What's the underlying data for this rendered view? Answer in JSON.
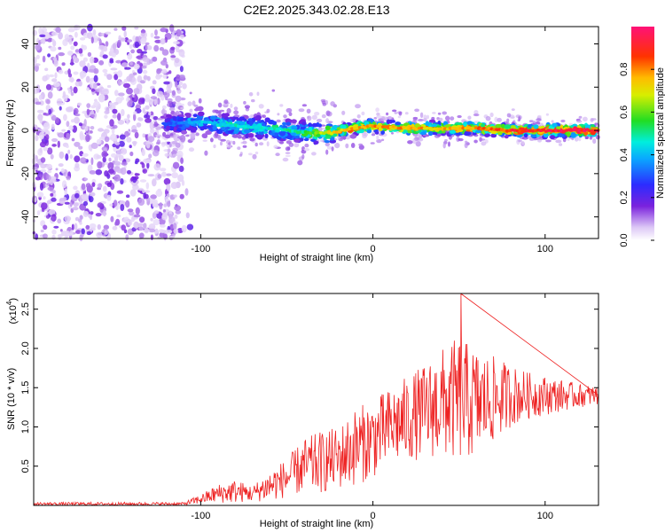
{
  "title": "C2E2.2025.343.02.28.E13",
  "chart_data": [
    {
      "type": "heatmap",
      "title": "C2E2.2025.343.02.28.E13",
      "xlabel": "Height of straight line (km)",
      "ylabel": "Frequency (Hz)",
      "xlim": [
        -197,
        131
      ],
      "ylim": [
        -50,
        48
      ],
      "xticks": [
        -100,
        0,
        100
      ],
      "yticks": [
        -40,
        -20,
        0,
        20,
        40
      ],
      "colorbar": {
        "label": "Normalized spectral amplitude",
        "range": [
          0,
          1
        ],
        "ticks": [
          0.0,
          0.2,
          0.4,
          0.6,
          0.8
        ]
      },
      "ridge": {
        "description_points_x": [
          -120,
          -100,
          -80,
          -60,
          -40,
          -25,
          -10,
          0,
          20,
          40,
          60,
          80,
          100,
          131
        ],
        "frequency_hz": [
          3,
          4,
          2,
          1,
          -1,
          -1,
          1,
          2,
          1,
          1,
          1,
          0,
          0,
          0
        ],
        "peak_amplitude": [
          0.3,
          0.45,
          0.5,
          0.5,
          0.55,
          0.75,
          0.85,
          0.85,
          0.85,
          0.8,
          0.85,
          0.95,
          1.0,
          1.0
        ]
      }
    },
    {
      "type": "line",
      "xlabel": "Height of straight line (km)",
      "ylabel": "SNR (10 * v/v)",
      "y_multiplier_label": "(x10",
      "y_multiplier_exp": "4",
      "xlim": [
        -197,
        131
      ],
      "ylim": [
        0,
        2.7
      ],
      "xticks": [
        -100,
        0,
        100
      ],
      "yticks": [
        0.5,
        1.0,
        1.5,
        2.0,
        2.5
      ],
      "series": [
        {
          "name": "SNR",
          "color": "#ee2222",
          "envelope_x": [
            -197,
            -110,
            -100,
            -90,
            -80,
            -70,
            -60,
            -50,
            -40,
            -30,
            -20,
            -10,
            0,
            10,
            20,
            30,
            40,
            50,
            60,
            70,
            80,
            90,
            100,
            110,
            120,
            131
          ],
          "envelope_mean": [
            0.02,
            0.02,
            0.08,
            0.15,
            0.18,
            0.15,
            0.25,
            0.35,
            0.5,
            0.55,
            0.6,
            0.75,
            0.85,
            1.0,
            1.1,
            1.2,
            1.3,
            1.35,
            1.3,
            1.35,
            1.4,
            1.4,
            1.4,
            1.4,
            1.4,
            1.4
          ],
          "envelope_spread": [
            0.02,
            0.02,
            0.06,
            0.12,
            0.15,
            0.1,
            0.2,
            0.25,
            0.35,
            0.4,
            0.4,
            0.5,
            0.5,
            0.5,
            0.55,
            0.6,
            0.7,
            0.8,
            0.7,
            0.55,
            0.4,
            0.3,
            0.25,
            0.2,
            0.15,
            0.12
          ],
          "peak": {
            "x": 51,
            "y": 2.7
          }
        }
      ]
    }
  ]
}
